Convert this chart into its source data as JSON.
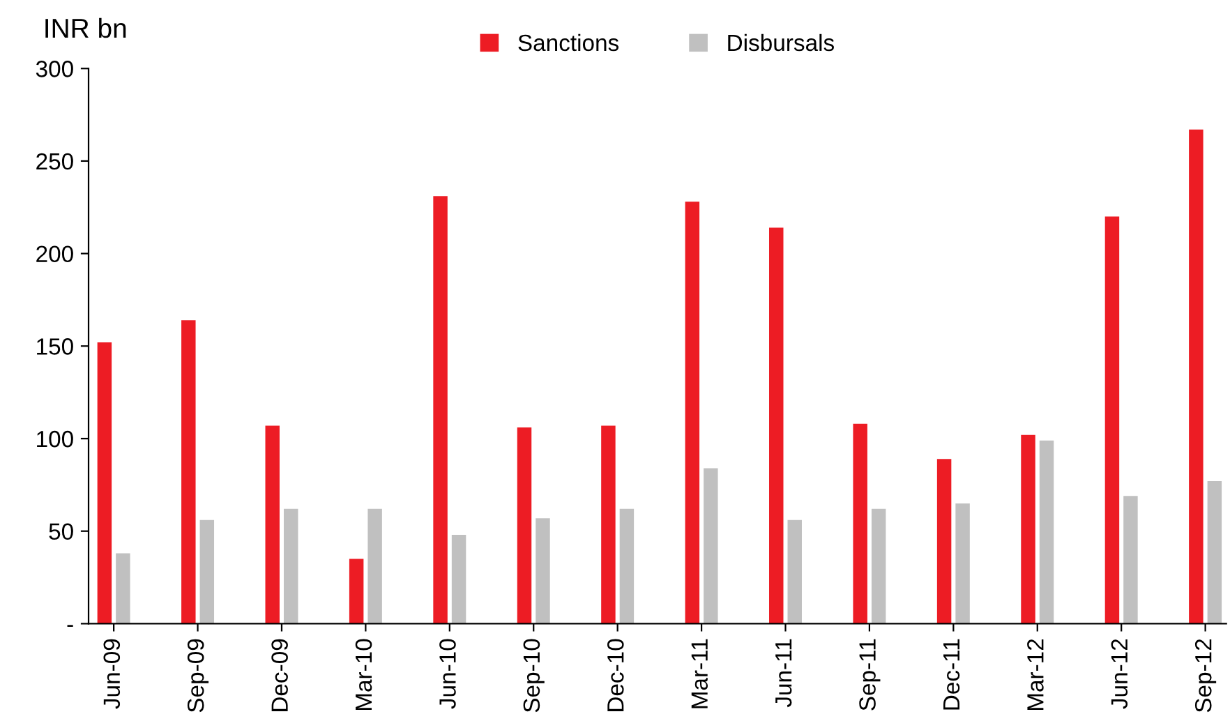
{
  "chart_data": {
    "type": "bar",
    "ylabel": "INR bn",
    "categories": [
      "Jun-09",
      "Sep-09",
      "Dec-09",
      "Mar-10",
      "Jun-10",
      "Sep-10",
      "Dec-10",
      "Mar-11",
      "Jun-11",
      "Sep-11",
      "Dec-11",
      "Mar-12",
      "Jun-12",
      "Sep-12"
    ],
    "series": [
      {
        "name": "Sanctions",
        "color": "#ed1c24",
        "values": [
          152,
          164,
          107,
          35,
          231,
          106,
          107,
          228,
          214,
          108,
          89,
          102,
          220,
          267
        ]
      },
      {
        "name": "Disbursals",
        "color": "#c0c0c0",
        "values": [
          38,
          56,
          62,
          62,
          48,
          57,
          62,
          84,
          56,
          62,
          65,
          99,
          69,
          77
        ]
      }
    ],
    "ylim": [
      0,
      300
    ],
    "yticks": [
      {
        "value": 0,
        "label": "-"
      },
      50,
      100,
      150,
      200,
      250,
      300
    ],
    "grid": false,
    "legend": "top"
  }
}
